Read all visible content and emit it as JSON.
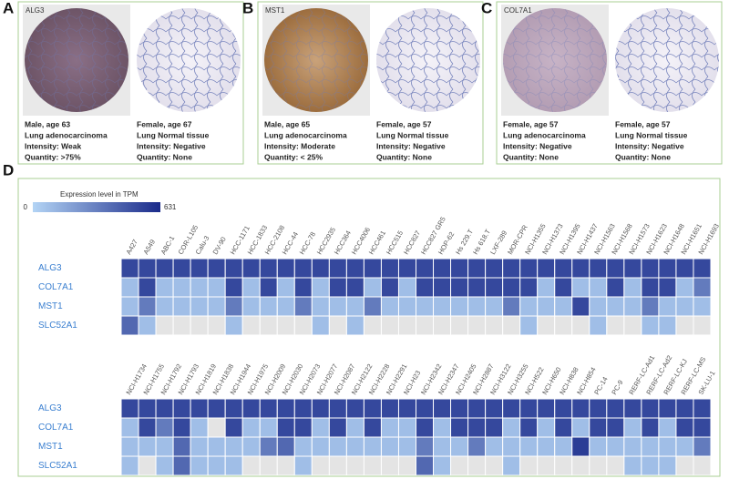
{
  "panels": [
    {
      "letter": "A",
      "gene": "ALG3",
      "samples": [
        {
          "lines": [
            "Male, age 63",
            "Lung adenocarcinoma",
            "Intensity: Weak",
            "Quantity: >75%"
          ]
        },
        {
          "lines": [
            "Female, age 67",
            "Lung Normal tissue",
            "Intensity: Negative",
            "Quantity: None"
          ]
        }
      ]
    },
    {
      "letter": "B",
      "gene": "MST1",
      "samples": [
        {
          "lines": [
            "Male, age 65",
            "Lung adenocarcinoma",
            "Intensity: Moderate",
            "Quantity: < 25%"
          ]
        },
        {
          "lines": [
            "Female, age 57",
            "Lung Normal tissue",
            "Intensity: Negative",
            "Quantity: None"
          ]
        }
      ]
    },
    {
      "letter": "C",
      "gene": "COL7A1",
      "samples": [
        {
          "lines": [
            "Female, age 57",
            "Lung adenocarcinoma",
            "Intensity: Negative",
            "Quantity: None"
          ]
        },
        {
          "lines": [
            "Female, age 57",
            "Lung Normal tissue",
            "Intensity: Negative",
            "Quantity: None"
          ]
        }
      ]
    }
  ],
  "heatmap": {
    "letter": "D",
    "colorbar_title": "Expression level in TPM",
    "clim": [
      0,
      631
    ],
    "colors": [
      "#b3d4f5",
      "#1a2a8a"
    ],
    "missing_color": "#e4e4e4",
    "blocks": [
      {
        "columns": [
          "A427",
          "A549",
          "ABC-1",
          "COR-L105",
          "Calu-3",
          "DV-90",
          "HCC-1171",
          "HCC-1833",
          "HCC-2108",
          "HCC-44",
          "HCC-78",
          "HCC2935",
          "HCC364",
          "HCC4006",
          "HCC461",
          "HCC515",
          "HCC827",
          "HCC827 GR5",
          "HOP-62",
          "Hs 229.T",
          "Hs 618.T",
          "LXF-289",
          "MOR-CPR",
          "NCI-H1355",
          "NCI-H1373",
          "NCI-H1395",
          "NCI-H1437",
          "NCI-H1563",
          "NCI-H1568",
          "NCI-H1573",
          "NCI-H1623",
          "NCI-H1648",
          "NCI-H1651",
          "NCI-H1693"
        ],
        "rows": [
          {
            "name": "ALG3",
            "values": [
              520,
              520,
              520,
              520,
              520,
              520,
              520,
              520,
              520,
              520,
              520,
              520,
              520,
              520,
              520,
              520,
              520,
              520,
              520,
              520,
              520,
              520,
              520,
              520,
              520,
              520,
              520,
              520,
              520,
              520,
              520,
              520,
              520,
              520
            ]
          },
          {
            "name": "COL7A1",
            "values": [
              80,
              520,
              80,
              80,
              80,
              80,
              520,
              80,
              520,
              80,
              520,
              80,
              520,
              520,
              80,
              520,
              80,
              520,
              520,
              520,
              520,
              520,
              520,
              520,
              80,
              520,
              80,
              80,
              520,
              80,
              520,
              520,
              80,
              330
            ]
          },
          {
            "name": "MST1",
            "values": [
              80,
              330,
              80,
              80,
              80,
              80,
              330,
              80,
              80,
              80,
              330,
              80,
              80,
              80,
              330,
              80,
              80,
              80,
              80,
              80,
              80,
              80,
              330,
              80,
              80,
              80,
              520,
              80,
              80,
              80,
              330,
              80,
              80,
              80
            ]
          },
          {
            "name": "SLC52A1",
            "values": [
              400,
              80,
              null,
              null,
              null,
              null,
              80,
              null,
              null,
              null,
              null,
              80,
              null,
              80,
              null,
              null,
              null,
              null,
              null,
              null,
              null,
              null,
              null,
              80,
              null,
              null,
              null,
              80,
              null,
              null,
              80,
              80,
              null,
              null
            ]
          }
        ]
      },
      {
        "columns": [
          "NCI-H1734",
          "NCI-H1755",
          "NCI-H1792",
          "NCI-H1793",
          "NCI-H1819",
          "NCI-H1838",
          "NCI-H1944",
          "NCI-H1975",
          "NCI-H2009",
          "NCI-H2030",
          "NCI-H2073",
          "NCI-H2077",
          "NCI-H2087",
          "NCI-H2122",
          "NCI-H2228",
          "NCI-H2291",
          "NCI-H23",
          "NCI-H2342",
          "NCI-H2347",
          "NCI-H2405",
          "NCI-H2887",
          "NCI-H3122",
          "NCI-H3255",
          "NCI-H522",
          "NCI-H650",
          "NCI-H838",
          "NCI-H854",
          "PC-14",
          "PC-9",
          "RERF-LC-Ad1",
          "RERF-LC-Ad2",
          "RERF-LC-KJ",
          "RERF-LC-MS",
          "SK-LU-1"
        ],
        "rows": [
          {
            "name": "ALG3",
            "values": [
              520,
              520,
              520,
              520,
              520,
              520,
              520,
              520,
              520,
              520,
              520,
              520,
              520,
              520,
              520,
              520,
              520,
              520,
              520,
              520,
              520,
              520,
              520,
              520,
              520,
              520,
              520,
              520,
              520,
              520,
              520,
              520,
              520,
              520
            ]
          },
          {
            "name": "COL7A1",
            "values": [
              80,
              520,
              330,
              520,
              80,
              null,
              520,
              80,
              80,
              520,
              520,
              80,
              520,
              80,
              520,
              80,
              80,
              520,
              80,
              520,
              520,
              520,
              80,
              520,
              80,
              520,
              80,
              520,
              520,
              80,
              520,
              80,
              520,
              520
            ]
          },
          {
            "name": "MST1",
            "values": [
              80,
              80,
              80,
              400,
              80,
              80,
              80,
              80,
              330,
              400,
              80,
              80,
              80,
              80,
              80,
              80,
              80,
              330,
              80,
              80,
              330,
              80,
              80,
              80,
              80,
              80,
              560,
              80,
              80,
              80,
              80,
              80,
              80,
              330
            ]
          },
          {
            "name": "SLC52A1",
            "values": [
              80,
              null,
              80,
              400,
              80,
              80,
              80,
              null,
              null,
              null,
              80,
              null,
              null,
              null,
              null,
              null,
              null,
              400,
              80,
              null,
              null,
              null,
              80,
              null,
              null,
              null,
              null,
              null,
              null,
              80,
              80,
              80,
              null,
              null
            ]
          }
        ]
      }
    ]
  }
}
